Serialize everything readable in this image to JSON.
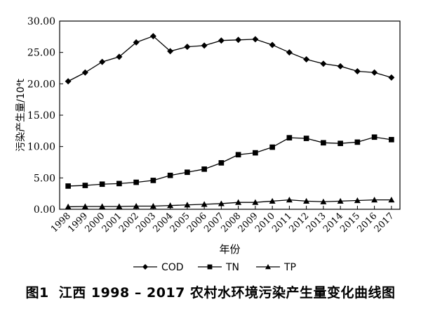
{
  "chart_data": {
    "type": "line",
    "ylabel": "污染产生量/10⁴t",
    "xlabel": "年份",
    "ylim": [
      0,
      30
    ],
    "yticks": [
      "0.00",
      "5.00",
      "10.00",
      "15.00",
      "20.00",
      "25.00",
      "30.00"
    ],
    "categories": [
      "1998",
      "1999",
      "2000",
      "2001",
      "2002",
      "2003",
      "2004",
      "2005",
      "2006",
      "2007",
      "2008",
      "2009",
      "2010",
      "2011",
      "2012",
      "2013",
      "2014",
      "2015",
      "2016",
      "2017"
    ],
    "series": [
      {
        "name": "COD",
        "marker": "diamond",
        "values": [
          20.4,
          21.8,
          23.5,
          24.3,
          26.6,
          27.6,
          25.2,
          25.9,
          26.1,
          26.9,
          27.0,
          27.1,
          26.2,
          25.0,
          23.9,
          23.2,
          22.8,
          22.0,
          21.8,
          21.0
        ]
      },
      {
        "name": "TN",
        "marker": "square",
        "values": [
          3.7,
          3.8,
          4.0,
          4.1,
          4.3,
          4.6,
          5.4,
          5.9,
          6.4,
          7.4,
          8.7,
          9.0,
          9.9,
          11.4,
          11.3,
          10.6,
          10.5,
          10.7,
          11.5,
          11.1
        ]
      },
      {
        "name": "TP",
        "marker": "triangle",
        "values": [
          0.4,
          0.45,
          0.45,
          0.45,
          0.5,
          0.5,
          0.6,
          0.7,
          0.8,
          0.9,
          1.1,
          1.1,
          1.3,
          1.5,
          1.3,
          1.2,
          1.3,
          1.4,
          1.5,
          1.5
        ]
      }
    ],
    "legend": "bottom",
    "grid": false
  },
  "caption": {
    "number": "图1",
    "text": "江西 1998 – 2017 农村水环境污染产生量变化曲线图"
  }
}
